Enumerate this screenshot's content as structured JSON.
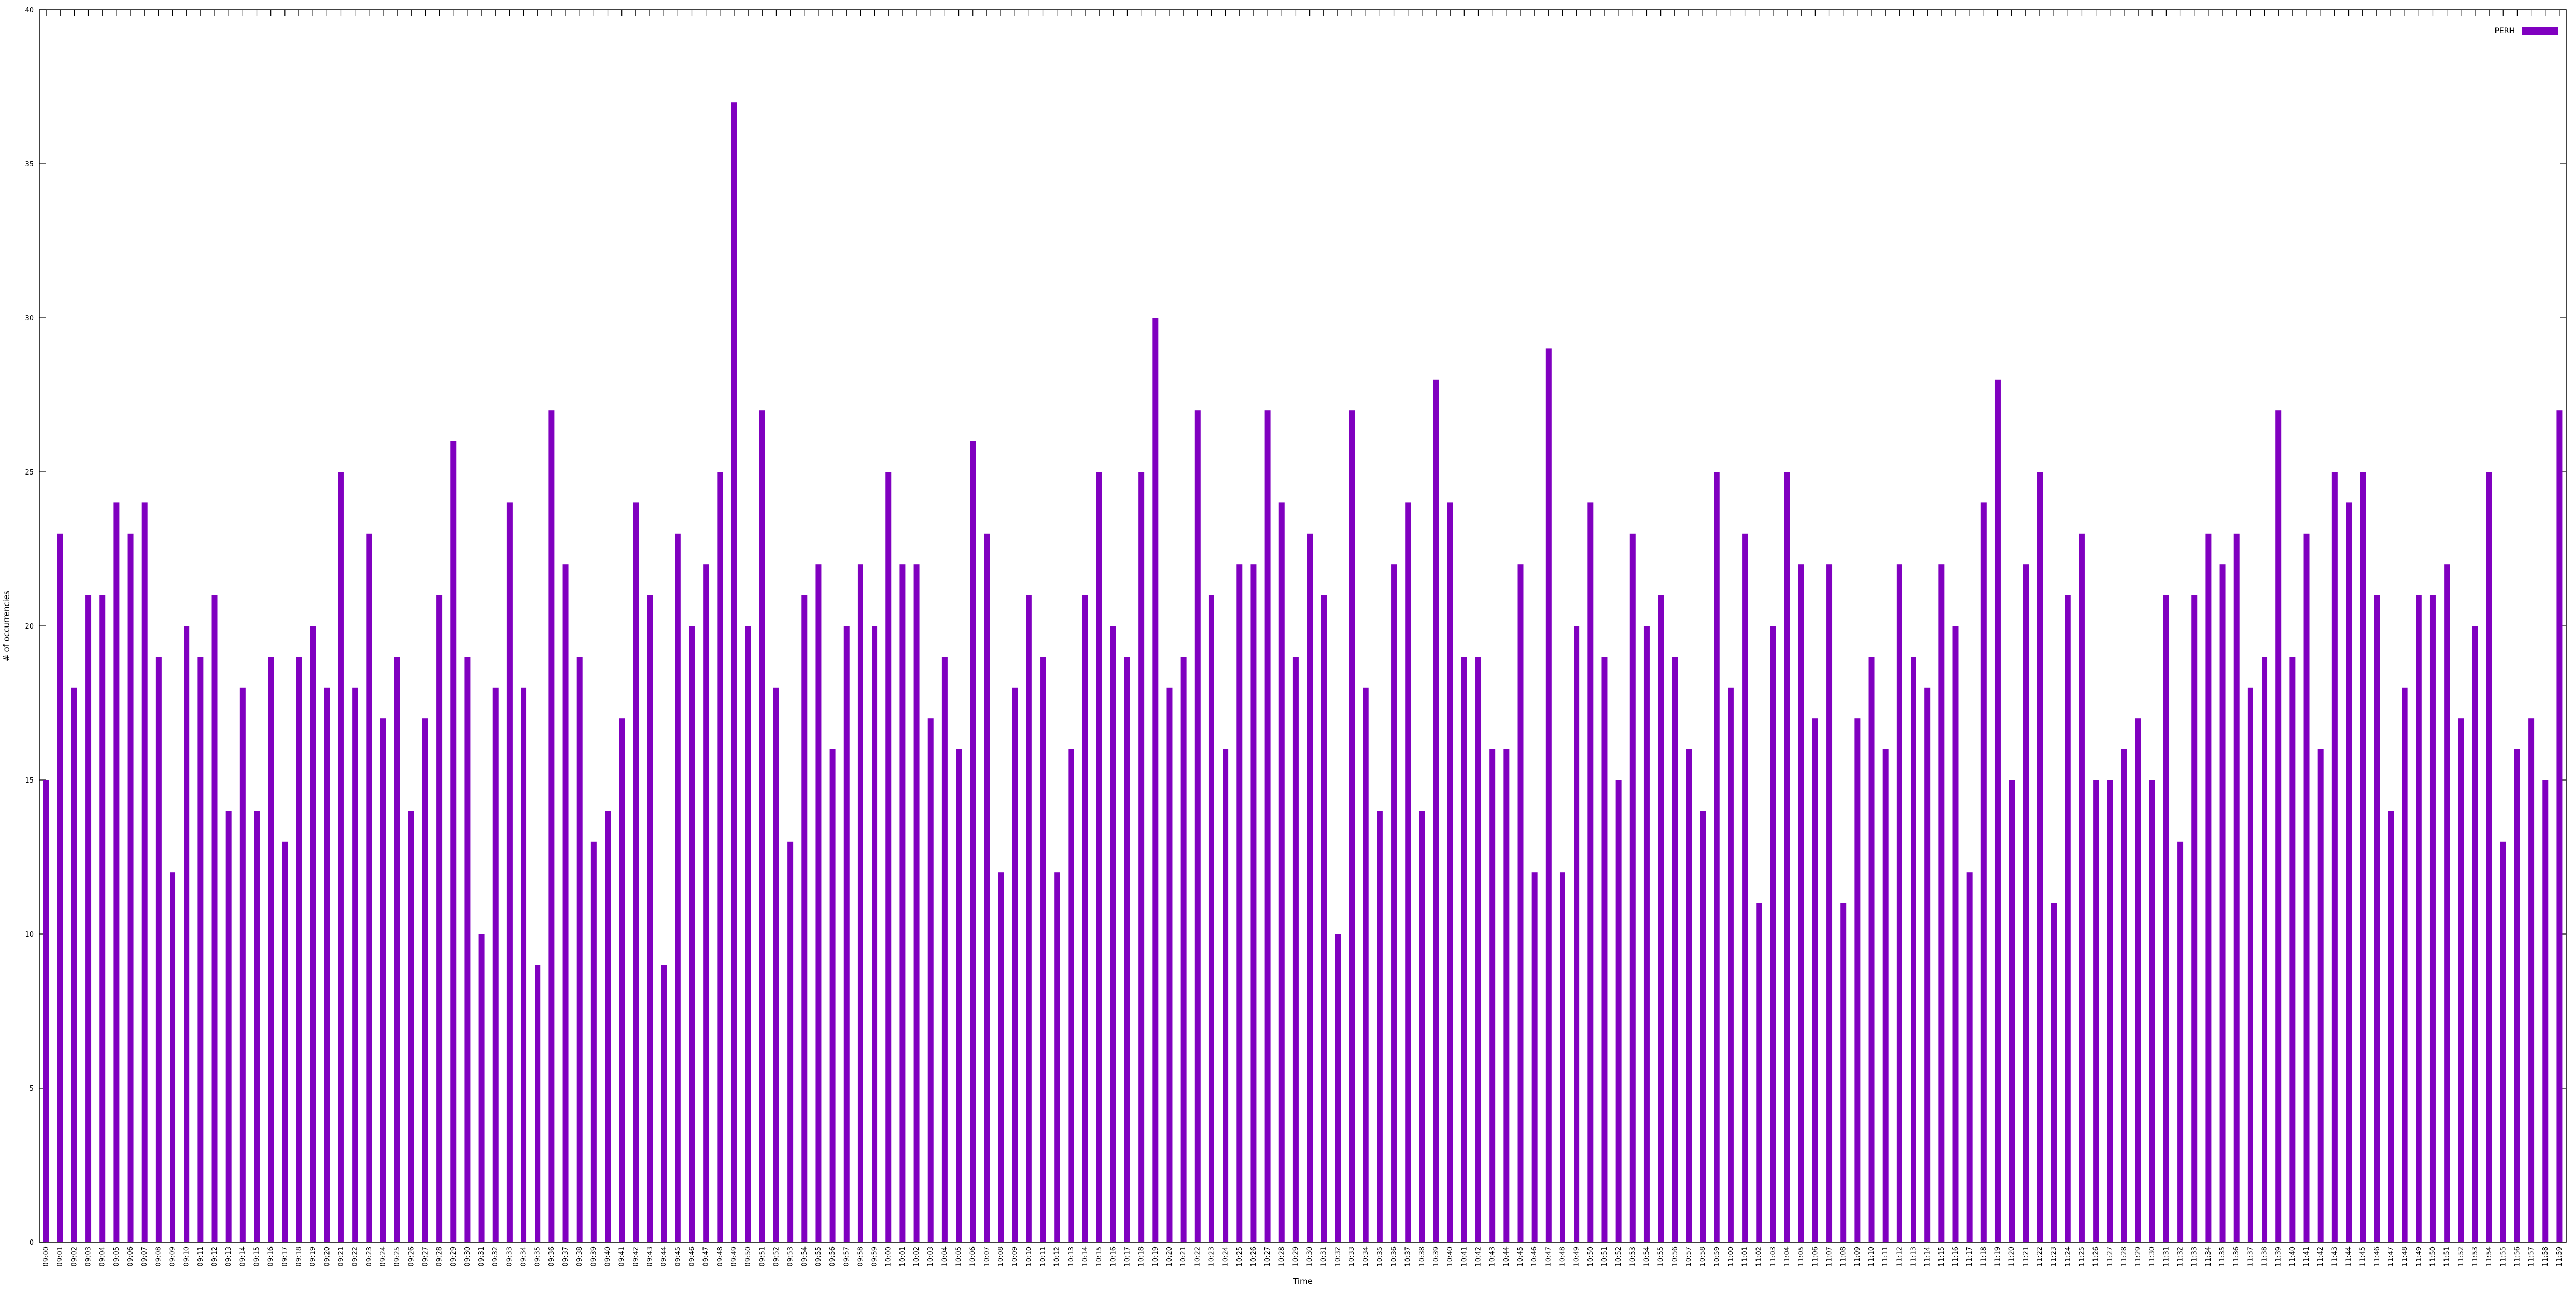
{
  "chart_data": {
    "type": "bar",
    "xlabel": "Time",
    "ylabel": "# of occurrencies",
    "ylim": [
      0,
      40
    ],
    "yticks": [
      0,
      5,
      10,
      15,
      20,
      25,
      30,
      35,
      40
    ],
    "legend": "top-right",
    "grid": false,
    "series": [
      {
        "name": "PERH",
        "color": "#8000c0",
        "values": [
          15,
          23,
          18,
          21,
          21,
          24,
          23,
          24,
          19,
          12,
          20,
          19,
          21,
          14,
          18,
          14,
          19,
          13,
          19,
          20,
          18,
          25,
          18,
          23,
          17,
          19,
          14,
          17,
          21,
          26,
          19,
          10,
          18,
          24,
          18,
          9,
          27,
          22,
          19,
          13,
          14,
          17,
          24,
          21,
          9,
          23,
          20,
          22,
          25,
          37,
          20,
          27,
          18,
          13,
          21,
          22,
          16,
          20,
          22,
          20,
          25,
          22,
          22,
          17,
          19,
          16,
          26,
          23,
          12,
          18,
          21,
          19,
          12,
          16,
          21,
          25,
          20,
          19,
          25,
          30,
          18,
          19,
          27,
          21,
          16,
          22,
          22,
          27,
          24,
          19,
          23,
          21,
          10,
          27,
          18,
          14,
          22,
          24,
          14,
          28,
          24,
          19,
          19,
          16,
          16,
          22,
          12,
          29,
          12,
          20,
          24,
          19,
          15,
          23,
          20,
          21,
          19,
          16,
          14,
          25,
          18,
          23,
          11,
          20,
          25,
          22,
          17,
          22,
          11,
          17,
          19,
          16,
          22,
          19,
          18,
          22,
          20,
          12,
          24,
          28,
          15,
          22,
          25,
          11,
          21,
          23,
          15,
          15,
          16,
          17,
          15,
          21,
          13,
          21,
          23,
          22,
          23,
          18,
          19,
          27,
          19,
          23,
          16,
          25,
          24,
          25,
          21,
          14,
          18,
          21,
          21,
          22,
          17,
          20,
          25,
          13,
          16,
          17,
          15,
          27
        ]
      }
    ],
    "categories": [
      "09:00",
      "09:01",
      "09:02",
      "09:03",
      "09:04",
      "09:05",
      "09:06",
      "09:07",
      "09:08",
      "09:09",
      "09:10",
      "09:11",
      "09:12",
      "09:13",
      "09:14",
      "09:15",
      "09:16",
      "09:17",
      "09:18",
      "09:19",
      "09:20",
      "09:21",
      "09:22",
      "09:23",
      "09:24",
      "09:25",
      "09:26",
      "09:27",
      "09:28",
      "09:29",
      "09:30",
      "09:31",
      "09:32",
      "09:33",
      "09:34",
      "09:35",
      "09:36",
      "09:37",
      "09:38",
      "09:39",
      "09:40",
      "09:41",
      "09:42",
      "09:43",
      "09:44",
      "09:45",
      "09:46",
      "09:47",
      "09:48",
      "09:49",
      "09:50",
      "09:51",
      "09:52",
      "09:53",
      "09:54",
      "09:55",
      "09:56",
      "09:57",
      "09:58",
      "09:59",
      "10:00",
      "10:01",
      "10:02",
      "10:03",
      "10:04",
      "10:05",
      "10:06",
      "10:07",
      "10:08",
      "10:09",
      "10:10",
      "10:11",
      "10:12",
      "10:13",
      "10:14",
      "10:15",
      "10:16",
      "10:17",
      "10:18",
      "10:19",
      "10:20",
      "10:21",
      "10:22",
      "10:23",
      "10:24",
      "10:25",
      "10:26",
      "10:27",
      "10:28",
      "10:29",
      "10:30",
      "10:31",
      "10:32",
      "10:33",
      "10:34",
      "10:35",
      "10:36",
      "10:37",
      "10:38",
      "10:39",
      "10:40",
      "10:41",
      "10:42",
      "10:43",
      "10:44",
      "10:45",
      "10:46",
      "10:47",
      "10:48",
      "10:49",
      "10:50",
      "10:51",
      "10:52",
      "10:53",
      "10:54",
      "10:55",
      "10:56",
      "10:57",
      "10:58",
      "10:59",
      "11:00",
      "11:01",
      "11:02",
      "11:03",
      "11:04",
      "11:05",
      "11:06",
      "11:07",
      "11:08",
      "11:09",
      "11:10",
      "11:11",
      "11:12",
      "11:13",
      "11:14",
      "11:15",
      "11:16",
      "11:17",
      "11:18",
      "11:19",
      "11:20",
      "11:21",
      "11:22",
      "11:23",
      "11:24",
      "11:25",
      "11:26",
      "11:27",
      "11:28",
      "11:29",
      "11:30",
      "11:31",
      "11:32",
      "11:33",
      "11:34",
      "11:35",
      "11:36",
      "11:37",
      "11:38",
      "11:39",
      "11:40",
      "11:41",
      "11:42",
      "11:43",
      "11:44",
      "11:45",
      "11:46",
      "11:47",
      "11:48",
      "11:49",
      "11:50",
      "11:51",
      "11:52",
      "11:53",
      "11:54",
      "11:55",
      "11:56",
      "11:57",
      "11:58",
      "11:59"
    ]
  }
}
